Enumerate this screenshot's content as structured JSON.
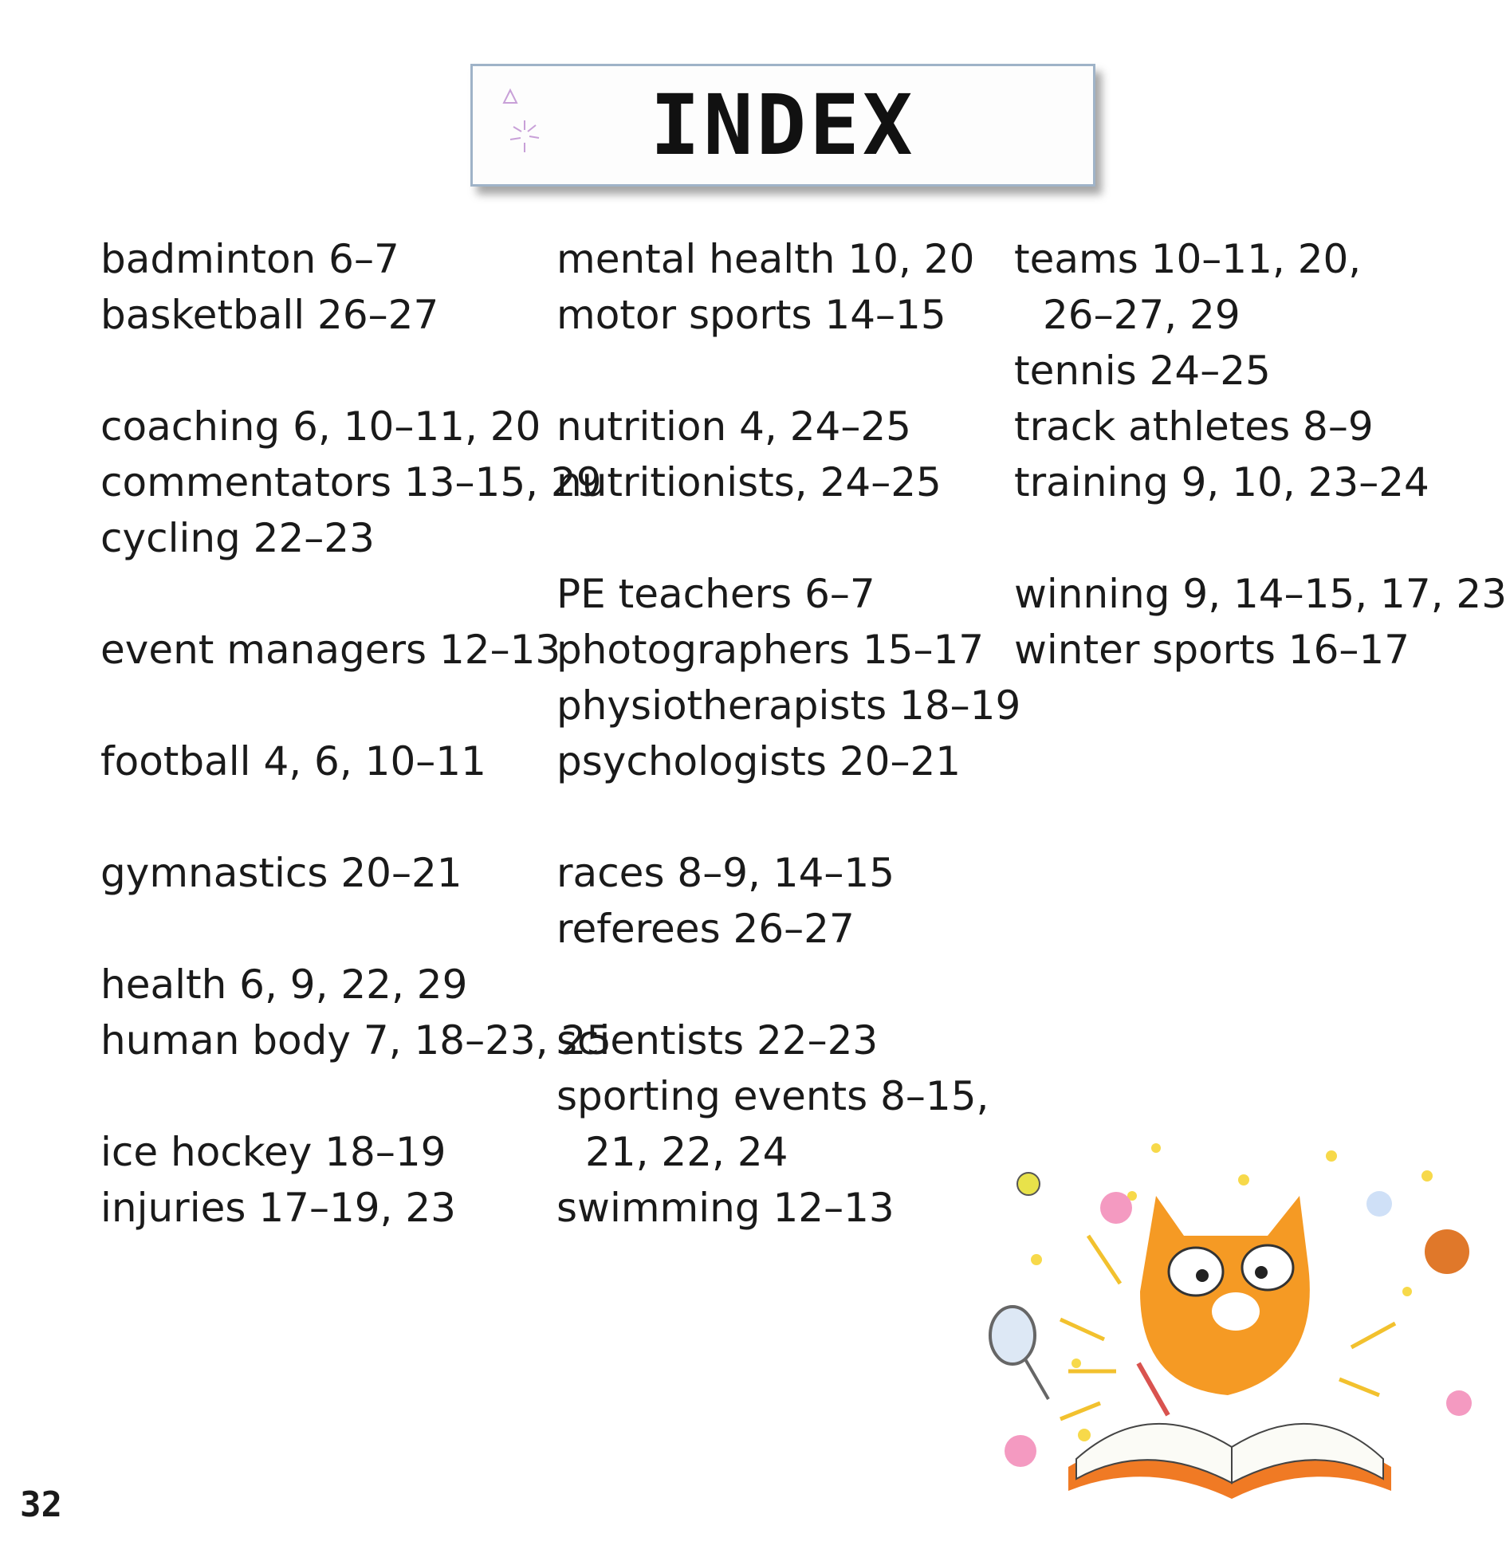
{
  "title": "INDEX",
  "page_number": "32",
  "columns": [
    [
      [
        [
          "badminton 6–7"
        ],
        [
          "basketball 26–27"
        ]
      ],
      [
        [
          "coaching 6, 10–11, 20"
        ],
        [
          "commentators 13–15, 29"
        ],
        [
          "cycling 22–23"
        ]
      ],
      [
        [
          "event managers 12–13"
        ]
      ],
      [
        [
          "football 4, 6, 10–11"
        ]
      ],
      [
        [
          "gymnastics 20–21"
        ]
      ],
      [
        [
          "health 6, 9, 22, 29"
        ],
        [
          "human body 7, 18–23, 25"
        ]
      ],
      [
        [
          "ice hockey 18–19"
        ],
        [
          "injuries 17–19, 23"
        ]
      ]
    ],
    [
      [
        [
          "mental health 10, 20"
        ],
        [
          "motor sports 14–15"
        ]
      ],
      [
        [
          "nutrition 4, 24–25"
        ],
        [
          "nutritionists, 24–25"
        ]
      ],
      [
        [
          "PE teachers 6–7"
        ],
        [
          "photographers 15–17"
        ],
        [
          "physiotherapists 18–19"
        ],
        [
          "psychologists 20–21"
        ]
      ],
      [
        [
          "races 8–9, 14–15"
        ],
        [
          "referees 26–27"
        ]
      ],
      [
        [
          "scientists 22–23"
        ],
        [
          "sporting events 8–15,",
          "21, 22, 24"
        ],
        [
          "swimming 12–13"
        ]
      ]
    ],
    [
      [
        [
          "teams 10–11, 20,",
          "26–27, 29"
        ],
        [
          "tennis 24–25"
        ],
        [
          "track athletes 8–9"
        ],
        [
          "training 9, 10, 23–24"
        ]
      ],
      [
        [
          "winning 9, 14–15, 17, 23"
        ],
        [
          "winter sports 16–17"
        ]
      ]
    ]
  ]
}
